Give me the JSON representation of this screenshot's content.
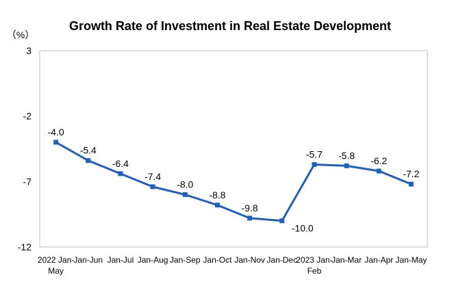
{
  "chart_data": {
    "type": "line",
    "title": "Growth Rate of Investment in Real Estate Development",
    "unit_label": "（%）",
    "xlabel": "",
    "ylabel": "",
    "ylim": [
      -12,
      3
    ],
    "yticks": [
      3,
      -2,
      -7,
      -12
    ],
    "grid": false,
    "legend": "none",
    "categories": [
      [
        "2022 Jan-",
        "May"
      ],
      [
        "Jan-Jun"
      ],
      [
        "Jan-Jul"
      ],
      [
        "Jan-Aug"
      ],
      [
        "Jan-Sep"
      ],
      [
        "Jan-Oct"
      ],
      [
        "Jan-Nov"
      ],
      [
        "Jan-Dec"
      ],
      [
        "2023 Jan-",
        "Feb"
      ],
      [
        "Jan-Mar"
      ],
      [
        "Jan-Apr"
      ],
      [
        "Jan-May"
      ]
    ],
    "series": [
      {
        "color": "#1f5fbf",
        "values": [
          -4.0,
          -5.4,
          -6.4,
          -7.4,
          -8.0,
          -8.8,
          -9.8,
          -10.0,
          -5.7,
          -5.8,
          -6.2,
          -7.2
        ],
        "data_labels": [
          "-4.0",
          "-5.4",
          "-6.4",
          "-7.4",
          "-8.0",
          "-8.8",
          "-9.8",
          "-10.0",
          "-5.7",
          "-5.8",
          "-6.2",
          "-7.2"
        ],
        "label_positions": [
          "above",
          "above",
          "above",
          "above",
          "above",
          "above",
          "above",
          "below-right",
          "above",
          "above",
          "above",
          "above"
        ]
      }
    ]
  }
}
